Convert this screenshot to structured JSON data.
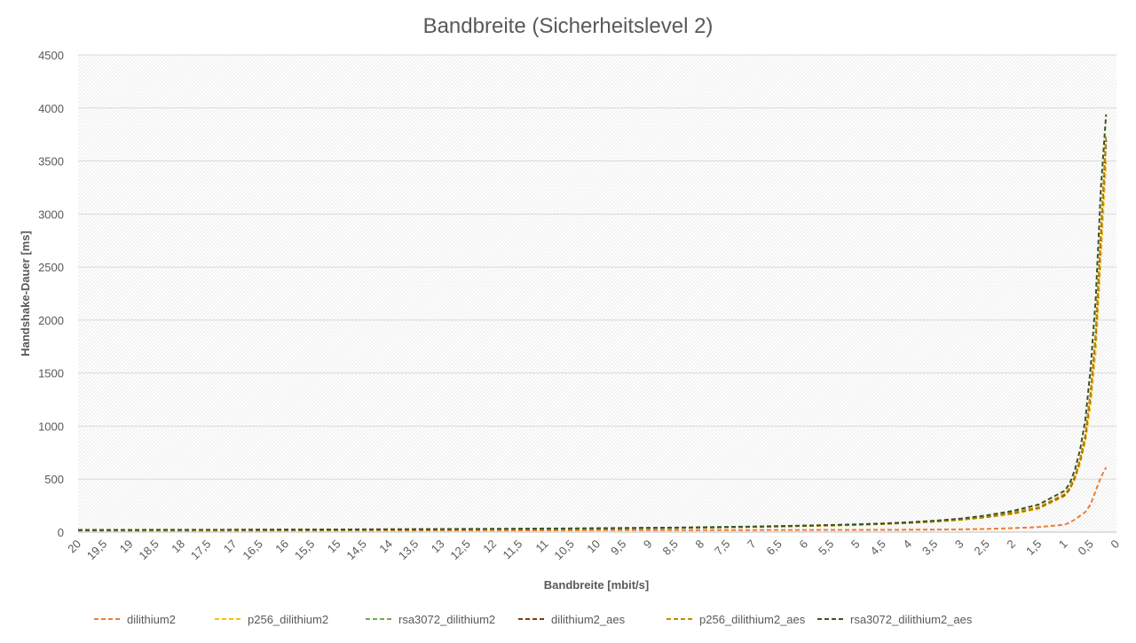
{
  "chart_data": {
    "type": "line",
    "title": "Bandbreite (Sicherheitslevel 2)",
    "xlabel": "Bandbreite [mbit/s]",
    "ylabel": "Handshake-Dauer [ms]",
    "x_direction": "reversed",
    "xlim": [
      20,
      0
    ],
    "ylim": [
      0,
      4500
    ],
    "grid": true,
    "legend_position": "bottom",
    "x_tick_labels": [
      "20",
      "19,5",
      "19",
      "18,5",
      "18",
      "17,5",
      "17",
      "16,5",
      "16",
      "15,5",
      "15",
      "14,5",
      "14",
      "13,5",
      "13",
      "12,5",
      "12",
      "11,5",
      "11",
      "10,5",
      "10",
      "9,5",
      "9",
      "8,5",
      "8",
      "7,5",
      "7",
      "6,5",
      "6",
      "5,5",
      "5",
      "4,5",
      "4",
      "3,5",
      "3",
      "2,5",
      "2",
      "1,5",
      "1",
      "0,5",
      "0"
    ],
    "y_tick_labels": [
      "0",
      "500",
      "1000",
      "1500",
      "2000",
      "2500",
      "3000",
      "3500",
      "4000",
      "4500"
    ],
    "y_ticks": [
      0,
      500,
      1000,
      1500,
      2000,
      2500,
      3000,
      3500,
      4000,
      4500
    ],
    "x": [
      20,
      19.5,
      19,
      18.5,
      18,
      17.5,
      17,
      16.5,
      16,
      15.5,
      15,
      14.5,
      14,
      13.5,
      13,
      12.5,
      12,
      11.5,
      11,
      10.5,
      10,
      9.5,
      9,
      8.5,
      8,
      7.5,
      7,
      6.5,
      6,
      5.5,
      5,
      4.5,
      4,
      3.5,
      3,
      2.5,
      2,
      1.5,
      1,
      0.9,
      0.8,
      0.7,
      0.6,
      0.5,
      0.4,
      0.3,
      0.2
    ],
    "series": [
      {
        "name": "dilithium2",
        "color": "#ED7D31",
        "values": [
          15,
          15,
          15,
          15,
          15,
          15,
          15,
          15,
          16,
          16,
          16,
          16,
          16,
          16,
          17,
          17,
          17,
          17,
          17,
          17,
          18,
          18,
          18,
          18,
          19,
          19,
          19,
          20,
          20,
          21,
          21,
          22,
          23,
          24,
          26,
          30,
          38,
          48,
          70,
          90,
          120,
          155,
          190,
          260,
          390,
          520,
          610
        ]
      },
      {
        "name": "p256_dilithium2",
        "color": "#FFC000",
        "values": [
          18,
          18,
          19,
          19,
          19,
          20,
          20,
          21,
          21,
          22,
          22,
          23,
          24,
          25,
          26,
          27,
          28,
          29,
          30,
          31,
          33,
          35,
          37,
          39,
          42,
          45,
          48,
          52,
          57,
          62,
          68,
          76,
          86,
          98,
          115,
          140,
          170,
          220,
          340,
          400,
          500,
          650,
          850,
          1200,
          1700,
          2600,
          3500
        ]
      },
      {
        "name": "rsa3072_dilithium2",
        "color": "#70AD47",
        "values": [
          19,
          19,
          19,
          20,
          20,
          21,
          21,
          22,
          22,
          23,
          23,
          24,
          25,
          26,
          27,
          28,
          29,
          30,
          31,
          32,
          34,
          36,
          38,
          40,
          43,
          46,
          50,
          54,
          59,
          64,
          70,
          78,
          88,
          101,
          118,
          145,
          180,
          230,
          350,
          410,
          520,
          680,
          900,
          1300,
          1850,
          2800,
          3700
        ]
      },
      {
        "name": "dilithium2_aes",
        "color": "#843C0C",
        "values": [
          19,
          19,
          20,
          20,
          20,
          21,
          21,
          22,
          22,
          23,
          24,
          24,
          25,
          26,
          27,
          28,
          29,
          30,
          31,
          33,
          34,
          36,
          38,
          41,
          43,
          46,
          50,
          54,
          59,
          64,
          70,
          78,
          88,
          101,
          118,
          145,
          180,
          230,
          350,
          410,
          520,
          680,
          900,
          1300,
          1850,
          2800,
          3700
        ]
      },
      {
        "name": "p256_dilithium2_aes",
        "color": "#BF8F00",
        "values": [
          20,
          20,
          20,
          21,
          21,
          21,
          22,
          22,
          23,
          23,
          24,
          25,
          26,
          27,
          28,
          29,
          30,
          31,
          32,
          33,
          35,
          37,
          39,
          41,
          44,
          47,
          51,
          55,
          60,
          65,
          71,
          79,
          89,
          103,
          120,
          148,
          185,
          235,
          360,
          420,
          530,
          690,
          920,
          1320,
          1880,
          2850,
          3750
        ]
      },
      {
        "name": "rsa3072_dilithium2_aes",
        "color": "#375623",
        "values": [
          21,
          21,
          21,
          22,
          22,
          22,
          23,
          23,
          24,
          24,
          25,
          26,
          27,
          28,
          29,
          30,
          31,
          32,
          34,
          35,
          37,
          39,
          41,
          43,
          46,
          49,
          53,
          57,
          62,
          67,
          74,
          82,
          93,
          108,
          128,
          158,
          200,
          260,
          390,
          460,
          590,
          780,
          1060,
          1540,
          2200,
          3250,
          3940
        ]
      }
    ]
  }
}
